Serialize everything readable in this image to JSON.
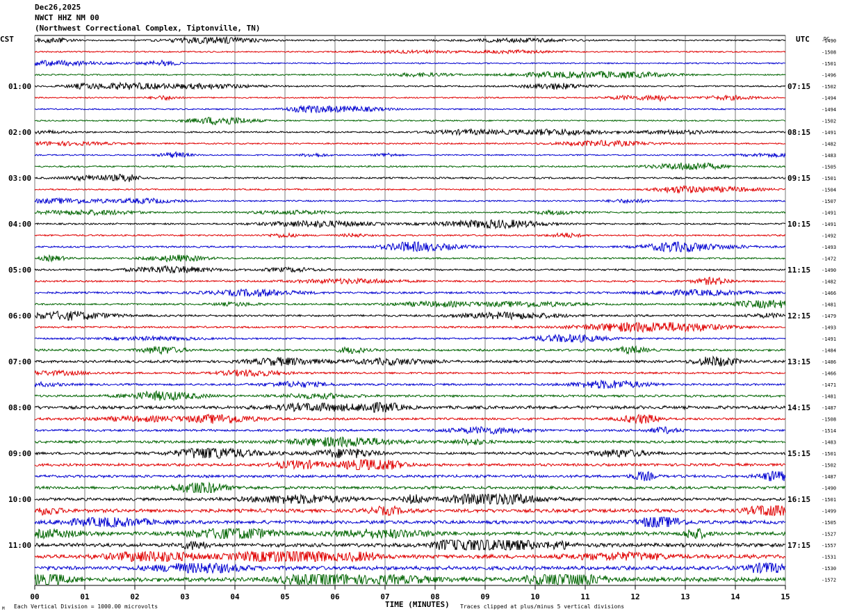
{
  "header": {
    "date": "Dec26,2025",
    "station": "NWCT HHZ NM 00",
    "location": "(Northwest Correctional Complex, Tiptonville, TN)"
  },
  "labels": {
    "left_tz": "CST",
    "right_tz": "UTC",
    "dc": "DC",
    "xlabel": "TIME (MINUTES)",
    "footer_left": "Each Vertical Division = 1000.00 microvolts",
    "footer_right": "Traces clipped at plus/minus 5 vertical divisions",
    "corner_mark": "M"
  },
  "chart_data": {
    "type": "line",
    "title": "NWCT HHZ NM 00",
    "xlabel": "TIME (MINUTES)",
    "xlim": [
      0,
      15
    ],
    "x_ticks": [
      "00",
      "01",
      "02",
      "03",
      "04",
      "05",
      "06",
      "07",
      "08",
      "09",
      "10",
      "11",
      "12",
      "13",
      "14",
      "15"
    ],
    "grid": true,
    "trace_colors": [
      "#000000",
      "#e00000",
      "#0000d0",
      "#006400"
    ],
    "minutes_per_line": 15,
    "line_count": 48,
    "left_time_labels": [
      {
        "line": 4,
        "text": "01:00"
      },
      {
        "line": 8,
        "text": "02:00"
      },
      {
        "line": 12,
        "text": "03:00"
      },
      {
        "line": 16,
        "text": "04:00"
      },
      {
        "line": 20,
        "text": "05:00"
      },
      {
        "line": 24,
        "text": "06:00"
      },
      {
        "line": 28,
        "text": "07:00"
      },
      {
        "line": 32,
        "text": "08:00"
      },
      {
        "line": 36,
        "text": "09:00"
      },
      {
        "line": 40,
        "text": "10:00"
      },
      {
        "line": 44,
        "text": "11:00"
      }
    ],
    "right_time_labels": [
      {
        "line": 4,
        "text": "07:15"
      },
      {
        "line": 8,
        "text": "08:15"
      },
      {
        "line": 12,
        "text": "09:15"
      },
      {
        "line": 16,
        "text": "10:15"
      },
      {
        "line": 20,
        "text": "11:15"
      },
      {
        "line": 24,
        "text": "12:15"
      },
      {
        "line": 28,
        "text": "13:15"
      },
      {
        "line": 32,
        "text": "14:15"
      },
      {
        "line": 36,
        "text": "15:15"
      },
      {
        "line": 40,
        "text": "16:15"
      },
      {
        "line": 44,
        "text": "17:15"
      }
    ],
    "dc_offsets": [
      "-1490",
      "-1508",
      "-1501",
      "-1496",
      "-1502",
      "-1494",
      "-1494",
      "-1502",
      "-1491",
      "-1482",
      "-1483",
      "-1505",
      "-1501",
      "-1504",
      "-1507",
      "-1491",
      "-1491",
      "-1492",
      "-1493",
      "-1472",
      "-1490",
      "-1482",
      "-1466",
      "-1481",
      "-1479",
      "-1493",
      "-1491",
      "-1484",
      "-1486",
      "-1466",
      "-1471",
      "-1481",
      "-1487",
      "-1508",
      "-1514",
      "-1483",
      "-1501",
      "-1502",
      "-1487",
      "-1490",
      "-1501",
      "-1499",
      "-1505",
      "-1527",
      "-1557",
      "-1531",
      "-1530",
      "-1572"
    ],
    "trace_noise_level": [
      1.0,
      1.0,
      1.0,
      1.0,
      1.1,
      1.0,
      1.0,
      1.0,
      1.2,
      1.1,
      1.0,
      1.2,
      1.3,
      1.1,
      1.1,
      1.1,
      1.2,
      1.2,
      1.3,
      1.2,
      1.3,
      1.3,
      1.5,
      1.3,
      1.5,
      1.4,
      1.3,
      1.6,
      1.8,
      1.4,
      1.5,
      1.6,
      2.2,
      1.6,
      1.6,
      1.8,
      1.8,
      1.9,
      1.9,
      2.0,
      2.0,
      2.4,
      2.4,
      2.5,
      2.6,
      2.7,
      2.7,
      2.9
    ]
  }
}
